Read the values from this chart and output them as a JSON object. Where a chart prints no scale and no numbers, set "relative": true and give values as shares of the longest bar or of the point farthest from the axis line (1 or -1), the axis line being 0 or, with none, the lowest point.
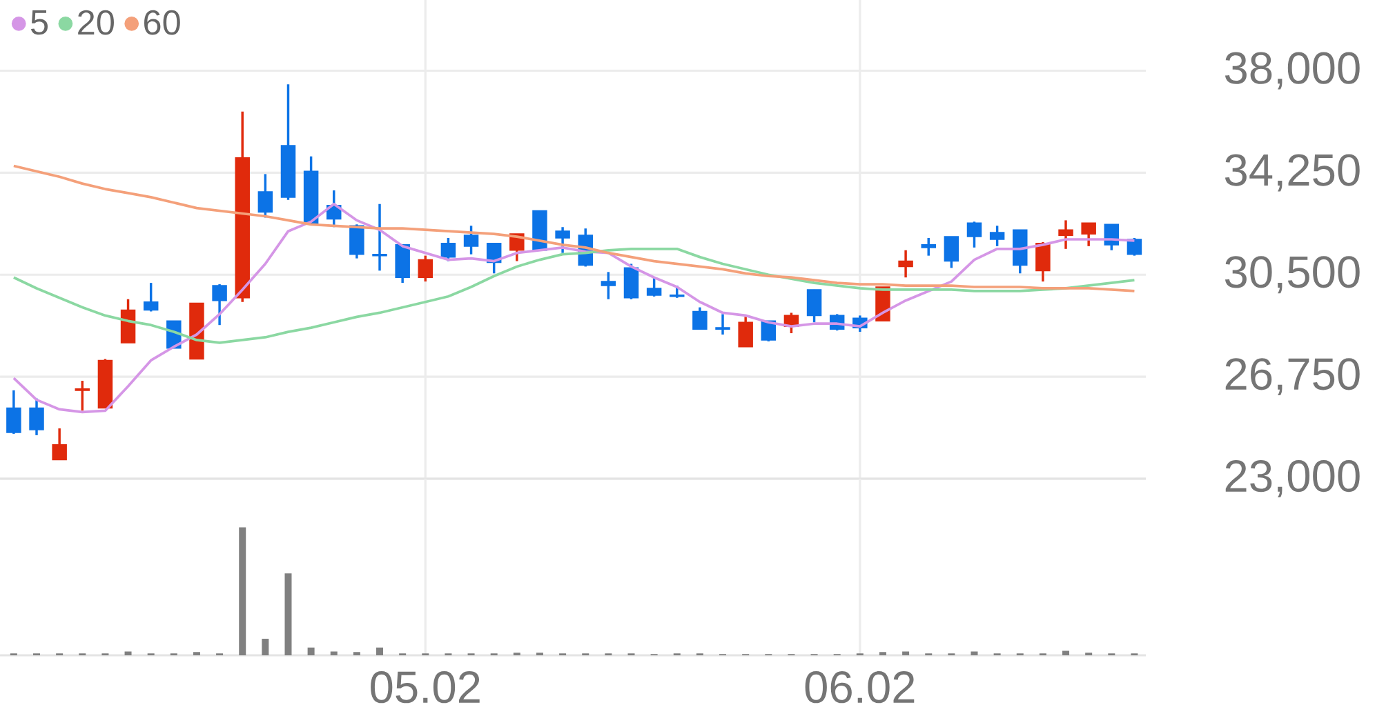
{
  "chart_data": [
    {
      "type": "candlestick",
      "categories": [
        null,
        null,
        null,
        null,
        null,
        null,
        null,
        null,
        null,
        null,
        null,
        null,
        null,
        null,
        null,
        null,
        null,
        null,
        "05.02",
        null,
        null,
        null,
        null,
        null,
        null,
        null,
        null,
        null,
        null,
        null,
        null,
        null,
        null,
        null,
        null,
        null,
        null,
        "06.02",
        null,
        null,
        null,
        null,
        null,
        null,
        null,
        null,
        null,
        null,
        null,
        null
      ],
      "ohlc": [
        [
          25600,
          26250,
          24650,
          24700
        ],
        [
          25600,
          25950,
          24600,
          24800
        ],
        [
          23700,
          24850,
          23700,
          24250
        ],
        [
          26250,
          26600,
          25500,
          26300
        ],
        [
          25600,
          27400,
          25600,
          27350
        ],
        [
          28000,
          29600,
          28000,
          29200
        ],
        [
          29500,
          30200,
          29150,
          29200
        ],
        [
          28800,
          28800,
          27800,
          27800
        ],
        [
          27400,
          29450,
          27400,
          29450
        ],
        [
          30100,
          30150,
          28650,
          29550
        ],
        [
          29650,
          36500,
          29500,
          34800
        ],
        [
          33550,
          34200,
          32600,
          32800
        ],
        [
          35250,
          37500,
          33250,
          33350
        ],
        [
          34300,
          34850,
          32350,
          32350
        ],
        [
          33050,
          33600,
          32250,
          32550
        ],
        [
          32300,
          32350,
          31100,
          31250
        ],
        [
          31250,
          33100,
          30650,
          31200
        ],
        [
          31600,
          31600,
          30200,
          30400
        ],
        [
          30400,
          31200,
          30250,
          31050
        ],
        [
          31650,
          31850,
          31000,
          31150
        ],
        [
          31950,
          32300,
          31250,
          31550
        ],
        [
          31650,
          31650,
          30550,
          30950
        ],
        [
          31400,
          32000,
          31000,
          32000
        ],
        [
          32850,
          32850,
          31400,
          31400
        ],
        [
          32100,
          32250,
          31300,
          31850
        ],
        [
          31950,
          32200,
          30800,
          30850
        ],
        [
          30250,
          30600,
          29600,
          30100
        ],
        [
          30750,
          30900,
          29600,
          29650
        ],
        [
          30000,
          30400,
          29700,
          29750
        ],
        [
          29750,
          30100,
          29650,
          29700
        ],
        [
          29150,
          29300,
          28500,
          28500
        ],
        [
          28550,
          29050,
          28300,
          28500
        ],
        [
          27850,
          28950,
          27850,
          28750
        ],
        [
          28800,
          28800,
          28050,
          28100
        ],
        [
          28600,
          29100,
          28350,
          29000
        ],
        [
          29950,
          29950,
          28750,
          29000
        ],
        [
          29000,
          29050,
          28450,
          28500
        ],
        [
          28900,
          29000,
          28400,
          28550
        ],
        [
          28800,
          30050,
          28800,
          30050
        ],
        [
          30800,
          31400,
          30400,
          31000
        ],
        [
          31600,
          31850,
          31200,
          31500
        ],
        [
          31900,
          31900,
          30750,
          31000
        ],
        [
          32400,
          32450,
          31500,
          31900
        ],
        [
          32050,
          32300,
          31550,
          31800
        ],
        [
          32150,
          32150,
          30550,
          30850
        ],
        [
          30650,
          31700,
          30250,
          31650
        ],
        [
          31950,
          32500,
          31450,
          32150
        ],
        [
          32000,
          32400,
          31550,
          32400
        ],
        [
          32350,
          32350,
          31400,
          31600
        ],
        [
          31800,
          31850,
          31200,
          31250
        ]
      ],
      "colors": [
        "#0c73e6",
        "#0c73e6",
        "#e02a0c",
        "#e02a0c",
        "#e02a0c",
        "#e02a0c",
        "#0c73e6",
        "#0c73e6",
        "#e02a0c",
        "#0c73e6",
        "#e02a0c",
        "#0c73e6",
        "#0c73e6",
        "#0c73e6",
        "#0c73e6",
        "#0c73e6",
        "#0c73e6",
        "#0c73e6",
        "#e02a0c",
        "#0c73e6",
        "#0c73e6",
        "#0c73e6",
        "#e02a0c",
        "#0c73e6",
        "#0c73e6",
        "#0c73e6",
        "#0c73e6",
        "#0c73e6",
        "#0c73e6",
        "#0c73e6",
        "#0c73e6",
        "#0c73e6",
        "#e02a0c",
        "#0c73e6",
        "#e02a0c",
        "#0c73e6",
        "#0c73e6",
        "#0c73e6",
        "#e02a0c",
        "#e02a0c",
        "#0c73e6",
        "#0c73e6",
        "#0c73e6",
        "#0c73e6",
        "#0c73e6",
        "#e02a0c",
        "#e02a0c",
        "#e02a0c",
        "#0c73e6",
        "#0c73e6"
      ],
      "series": [
        {
          "name": "5",
          "type": "line",
          "color": "#d596e6",
          "values": [
            26700,
            25900,
            25550,
            25450,
            25500,
            26400,
            27350,
            27850,
            28300,
            29050,
            29950,
            30900,
            32100,
            32450,
            33100,
            32500,
            32150,
            31550,
            31300,
            31050,
            31100,
            31000,
            31300,
            31400,
            31500,
            31350,
            31300,
            30800,
            30400,
            30050,
            29500,
            29100,
            29000,
            28750,
            28600,
            28700,
            28700,
            28600,
            29100,
            29550,
            29900,
            30250,
            31050,
            31450,
            31450,
            31600,
            31800,
            31800,
            31800,
            31750
          ]
        },
        {
          "name": "20",
          "type": "line",
          "color": "#8bd8a2",
          "values": [
            30400,
            30000,
            29650,
            29300,
            29000,
            28800,
            28650,
            28400,
            28100,
            28000,
            28100,
            28200,
            28400,
            28550,
            28750,
            28950,
            29100,
            29300,
            29500,
            29700,
            30050,
            30450,
            30800,
            31050,
            31250,
            31300,
            31400,
            31450,
            31450,
            31450,
            31150,
            30900,
            30700,
            30500,
            30350,
            30200,
            30100,
            30000,
            29950,
            29950,
            29950,
            29950,
            29900,
            29900,
            29900,
            29950,
            30000,
            30100,
            30200,
            30300
          ]
        },
        {
          "name": "60",
          "type": "line",
          "color": "#f4a07a",
          "values": [
            34500,
            34300,
            34100,
            33850,
            33650,
            33500,
            33350,
            33150,
            32950,
            32850,
            32750,
            32650,
            32500,
            32350,
            32300,
            32250,
            32200,
            32200,
            32150,
            32100,
            32050,
            32000,
            31900,
            31750,
            31600,
            31500,
            31300,
            31150,
            31000,
            30900,
            30800,
            30700,
            30550,
            30450,
            30400,
            30300,
            30200,
            30150,
            30150,
            30100,
            30100,
            30100,
            30050,
            30050,
            30050,
            30000,
            30000,
            30000,
            29950,
            29900
          ]
        }
      ],
      "ylim": [
        23000,
        40600
      ],
      "yticks": [
        {
          "value": 23000,
          "label": "23,000"
        },
        {
          "value": 26750,
          "label": "26,750"
        },
        {
          "value": 30500,
          "label": "30,500"
        },
        {
          "value": 34250,
          "label": "34,250"
        },
        {
          "value": 38000,
          "label": "38,000"
        }
      ],
      "grid": true,
      "legend": "top left",
      "tick_labels": "y"
    },
    {
      "type": "bar",
      "relative": true,
      "color": "#808080",
      "categories": [
        null,
        null,
        null,
        null,
        null,
        null,
        null,
        null,
        null,
        null,
        null,
        null,
        null,
        null,
        null,
        null,
        null,
        null,
        "05.02",
        null,
        null,
        null,
        null,
        null,
        null,
        null,
        null,
        null,
        null,
        null,
        null,
        null,
        null,
        null,
        null,
        null,
        null,
        "06.02",
        null,
        null,
        null,
        null,
        null,
        null,
        null,
        null,
        null,
        null,
        null,
        null
      ],
      "values": [
        0.015,
        0.015,
        0.015,
        0.015,
        0.015,
        0.03,
        0.015,
        0.015,
        0.025,
        0.015,
        1,
        0.13,
        0.64,
        0.06,
        0.03,
        0.025,
        0.06,
        0.015,
        0.015,
        0.015,
        0.015,
        0.015,
        0.02,
        0.02,
        0.015,
        0.015,
        0.015,
        0.015,
        0.01,
        0.015,
        0.015,
        0.01,
        0.01,
        0.01,
        0.01,
        0.01,
        0.01,
        0.015,
        0.025,
        0.03,
        0.015,
        0.015,
        0.03,
        0.015,
        0.015,
        0.015,
        0.035,
        0.02,
        0.015,
        0.015
      ],
      "grid": "x",
      "tick_labels": "x"
    }
  ]
}
